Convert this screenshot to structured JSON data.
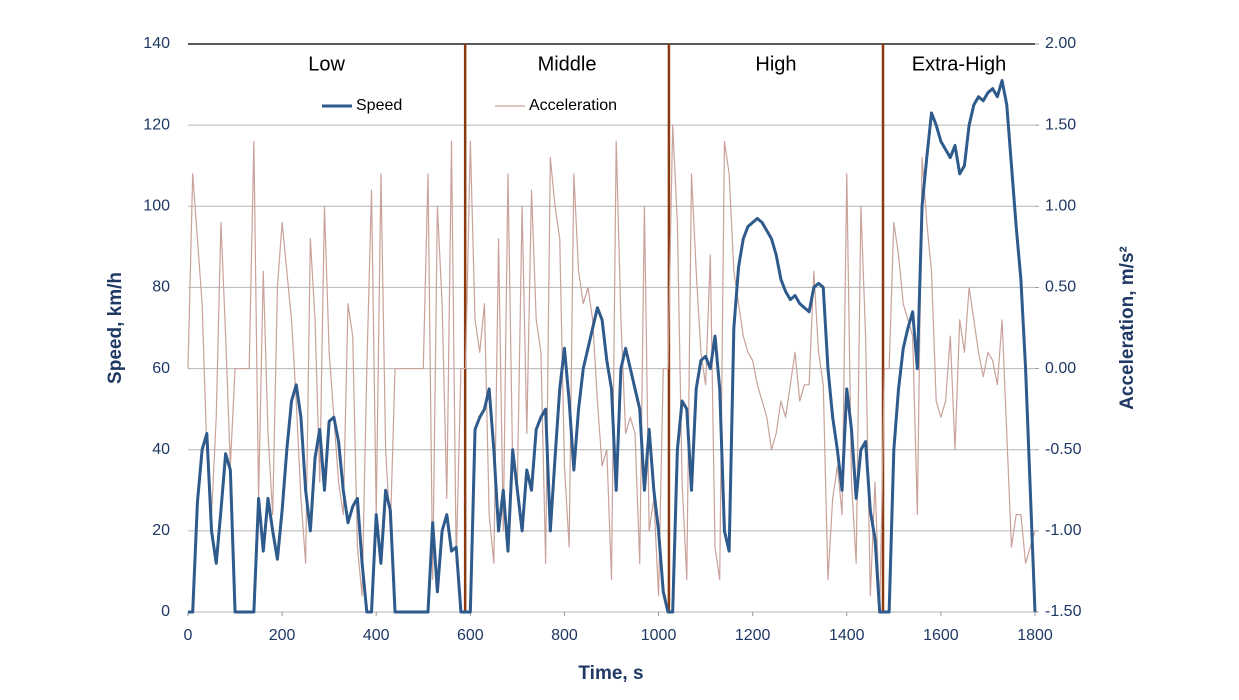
{
  "chart_data": {
    "type": "line",
    "xlabel": "Time, s",
    "ylabel": "Speed, km/h",
    "y2label": "Acceleration, m/s²",
    "xlim": [
      0,
      1800
    ],
    "xticks": [
      0,
      200,
      400,
      600,
      800,
      1000,
      1200,
      1400,
      1600,
      1800
    ],
    "ylim": [
      0,
      140
    ],
    "yticks": [
      0,
      20,
      40,
      60,
      80,
      100,
      120,
      140
    ],
    "y2lim": [
      -1.5,
      2
    ],
    "y2ticks": [
      {
        "value": -1.5,
        "label": "-1.50"
      },
      {
        "value": -1,
        "label": "-1.00"
      },
      {
        "value": -0.5,
        "label": "-0.50"
      },
      {
        "value": 0,
        "label": "0.00"
      },
      {
        "value": 0.5,
        "label": "0.50"
      },
      {
        "value": 1,
        "label": "1.00"
      },
      {
        "value": 1.5,
        "label": "1.50"
      },
      {
        "value": 2,
        "label": "2.00"
      }
    ],
    "grid": true,
    "legend": "top",
    "phases": [
      {
        "name": "Low",
        "start": 0,
        "end": 589
      },
      {
        "name": "Middle",
        "start": 589,
        "end": 1022
      },
      {
        "name": "High",
        "start": 1022,
        "end": 1477
      },
      {
        "name": "Extra-High",
        "start": 1477,
        "end": 1800
      }
    ],
    "phase_color": "#8b3a0f",
    "x": [
      0,
      10,
      20,
      30,
      40,
      50,
      60,
      70,
      80,
      90,
      100,
      110,
      120,
      130,
      140,
      150,
      160,
      170,
      180,
      190,
      200,
      210,
      220,
      230,
      240,
      250,
      260,
      270,
      280,
      290,
      300,
      310,
      320,
      330,
      340,
      350,
      360,
      370,
      380,
      390,
      400,
      410,
      420,
      430,
      440,
      450,
      460,
      470,
      480,
      490,
      500,
      510,
      520,
      530,
      540,
      550,
      560,
      570,
      580,
      590,
      600,
      610,
      620,
      630,
      640,
      650,
      660,
      670,
      680,
      690,
      700,
      710,
      720,
      730,
      740,
      750,
      760,
      770,
      780,
      790,
      800,
      810,
      820,
      830,
      840,
      850,
      860,
      870,
      880,
      890,
      900,
      910,
      920,
      930,
      940,
      950,
      960,
      970,
      980,
      990,
      1000,
      1010,
      1020,
      1030,
      1040,
      1050,
      1060,
      1070,
      1080,
      1090,
      1100,
      1110,
      1120,
      1130,
      1140,
      1150,
      1160,
      1170,
      1180,
      1190,
      1200,
      1210,
      1220,
      1230,
      1240,
      1250,
      1260,
      1270,
      1280,
      1290,
      1300,
      1310,
      1320,
      1330,
      1340,
      1350,
      1360,
      1370,
      1380,
      1390,
      1400,
      1410,
      1420,
      1430,
      1440,
      1450,
      1460,
      1470,
      1480,
      1490,
      1500,
      1510,
      1520,
      1530,
      1540,
      1550,
      1560,
      1570,
      1580,
      1590,
      1600,
      1610,
      1620,
      1630,
      1640,
      1650,
      1660,
      1670,
      1680,
      1690,
      1700,
      1710,
      1720,
      1730,
      1740,
      1750,
      1760,
      1770,
      1780,
      1790,
      1800
    ],
    "series": [
      {
        "name": "Speed",
        "color": "#2e5a8c",
        "width": 3,
        "values": [
          0,
          0,
          27,
          40,
          44,
          20,
          12,
          25,
          39,
          35,
          0,
          0,
          0,
          0,
          0,
          28,
          15,
          28,
          20,
          13,
          25,
          40,
          52,
          56,
          48,
          30,
          20,
          38,
          45,
          30,
          47,
          48,
          42,
          30,
          22,
          26,
          28,
          12,
          0,
          0,
          24,
          12,
          30,
          25,
          0,
          0,
          0,
          0,
          0,
          0,
          0,
          0,
          22,
          5,
          20,
          24,
          15,
          16,
          0,
          0,
          0,
          45,
          48,
          50,
          55,
          40,
          20,
          30,
          15,
          40,
          30,
          20,
          35,
          30,
          45,
          48,
          50,
          20,
          38,
          55,
          65,
          52,
          35,
          50,
          60,
          65,
          70,
          75,
          72,
          62,
          55,
          30,
          60,
          65,
          60,
          55,
          50,
          30,
          45,
          30,
          20,
          5,
          0,
          0,
          40,
          52,
          50,
          30,
          55,
          62,
          63,
          60,
          68,
          55,
          20,
          15,
          70,
          85,
          92,
          95,
          96,
          97,
          96,
          94,
          92,
          88,
          82,
          79,
          77,
          78,
          76,
          75,
          74,
          80,
          81,
          80,
          60,
          48,
          40,
          30,
          55,
          45,
          28,
          40,
          42,
          25,
          18,
          0,
          0,
          0,
          40,
          55,
          65,
          70,
          74,
          60,
          100,
          112,
          123,
          120,
          116,
          114,
          112,
          115,
          108,
          110,
          120,
          125,
          127,
          126,
          128,
          129,
          127,
          131,
          125,
          110,
          95,
          82,
          60,
          30,
          0
        ]
      },
      {
        "name": "Acceleration",
        "color": "#c9a29a",
        "width": 1.2,
        "axis": "y2",
        "values": [
          0,
          1.2,
          0.8,
          0.4,
          -0.5,
          -0.9,
          -0.3,
          0.9,
          0.2,
          -0.6,
          0,
          0,
          0,
          0,
          1.4,
          -0.8,
          0.6,
          -0.4,
          -0.9,
          0.5,
          0.9,
          0.6,
          0.3,
          -0.2,
          -0.8,
          -1.2,
          0.8,
          0.3,
          -0.7,
          1.0,
          0.1,
          -0.3,
          -0.7,
          -0.9,
          0.4,
          0.2,
          -1.1,
          -1.4,
          0,
          1.1,
          -0.9,
          1.2,
          -0.5,
          -1.0,
          0,
          0,
          0,
          0,
          0,
          0,
          0,
          1.2,
          -1.3,
          1.0,
          0.4,
          -0.8,
          1.4,
          -1.2,
          0,
          0,
          1.4,
          0.3,
          0.1,
          0.4,
          -0.9,
          -1.2,
          0.8,
          -1.0,
          1.2,
          -0.6,
          -0.7,
          1.0,
          -0.4,
          1.1,
          0.3,
          0.1,
          -1.2,
          1.3,
          1.0,
          0.8,
          -0.6,
          -1.1,
          1.2,
          0.6,
          0.4,
          0.5,
          0.3,
          -0.2,
          -0.6,
          -0.5,
          -1.3,
          1.4,
          0.3,
          -0.4,
          -0.3,
          -0.4,
          -1.2,
          1.0,
          -1.0,
          -0.8,
          -1.4,
          0,
          0,
          1.5,
          0.9,
          -0.7,
          -1.3,
          1.2,
          0.6,
          0.1,
          -0.1,
          0.7,
          -1.1,
          -1.3,
          1.4,
          1.2,
          0.6,
          0.4,
          0.2,
          0.1,
          0.05,
          -0.1,
          -0.2,
          -0.3,
          -0.5,
          -0.4,
          -0.2,
          -0.3,
          -0.1,
          0.1,
          -0.2,
          -0.1,
          -0.1,
          0.6,
          0.1,
          -0.1,
          -1.3,
          -0.8,
          -0.6,
          -0.9,
          1.2,
          -0.7,
          -1.2,
          1.0,
          0.2,
          -1.4,
          -0.7,
          -1.5,
          0,
          0,
          0.9,
          0.7,
          0.4,
          0.3,
          0.2,
          -0.9,
          1.3,
          0.9,
          0.6,
          -0.2,
          -0.3,
          -0.2,
          0.2,
          -0.5,
          0.3,
          0.1,
          0.5,
          0.3,
          0.1,
          -0.05,
          0.1,
          0.05,
          -0.1,
          0.3,
          -0.4,
          -1.1,
          -0.9,
          -0.9,
          -1.2,
          -1.1,
          -1.0
        ]
      }
    ]
  }
}
